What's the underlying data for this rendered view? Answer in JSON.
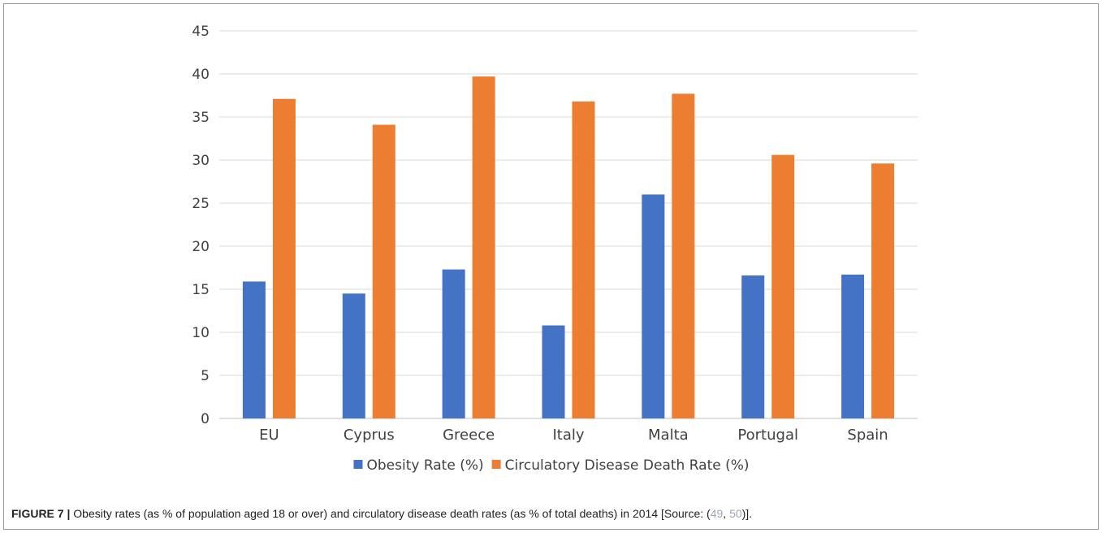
{
  "chart_data": {
    "type": "bar",
    "categories": [
      "EU",
      "Cyprus",
      "Greece",
      "Italy",
      "Malta",
      "Portugal",
      "Spain"
    ],
    "series": [
      {
        "name": "Obesity Rate (%)",
        "color": "#4472c4",
        "values": [
          15.9,
          14.5,
          17.3,
          10.8,
          26.0,
          16.6,
          16.7
        ]
      },
      {
        "name": "Circulatory Disease Death Rate (%)",
        "color": "#ed7d31",
        "values": [
          37.1,
          34.1,
          39.7,
          36.8,
          37.7,
          30.6,
          29.6
        ]
      }
    ],
    "ylim": [
      0,
      45
    ],
    "yticks": [
      0,
      5,
      10,
      15,
      20,
      25,
      30,
      35,
      40,
      45
    ],
    "grid": true,
    "legend_position": "bottom"
  },
  "caption": {
    "label": "FIGURE 7 |",
    "text": " Obesity rates (as % of population aged 18 or over) and circulatory disease death rates (as % of total deaths) in 2014 [Source: (",
    "cite1": "49",
    "sep": ", ",
    "cite2": "50",
    "end": ")]."
  }
}
